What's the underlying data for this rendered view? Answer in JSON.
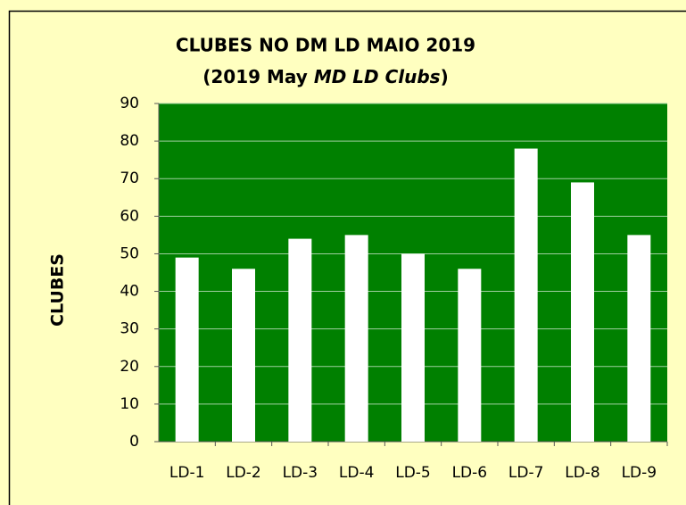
{
  "chart_data": {
    "type": "bar",
    "title": "CLUBES NO DM LD MAIO 2019",
    "subtitle": [
      "(2019 May",
      "MD LD Clubs",
      ")"
    ],
    "ylabel": "CLUBES",
    "categories": [
      "LD-1",
      "LD-2",
      "LD-3",
      "LD-4",
      "LD-5",
      "LD-6",
      "LD-7",
      "LD-8",
      "LD-9"
    ],
    "values": [
      49,
      46,
      54,
      55,
      50,
      46,
      78,
      69,
      55
    ],
    "color": "#ffffff",
    "plot_background": "#008000",
    "ylim": [
      0,
      90
    ],
    "yticks": [
      0,
      10,
      20,
      30,
      40,
      50,
      60,
      70,
      80,
      90
    ],
    "grid": true
  }
}
